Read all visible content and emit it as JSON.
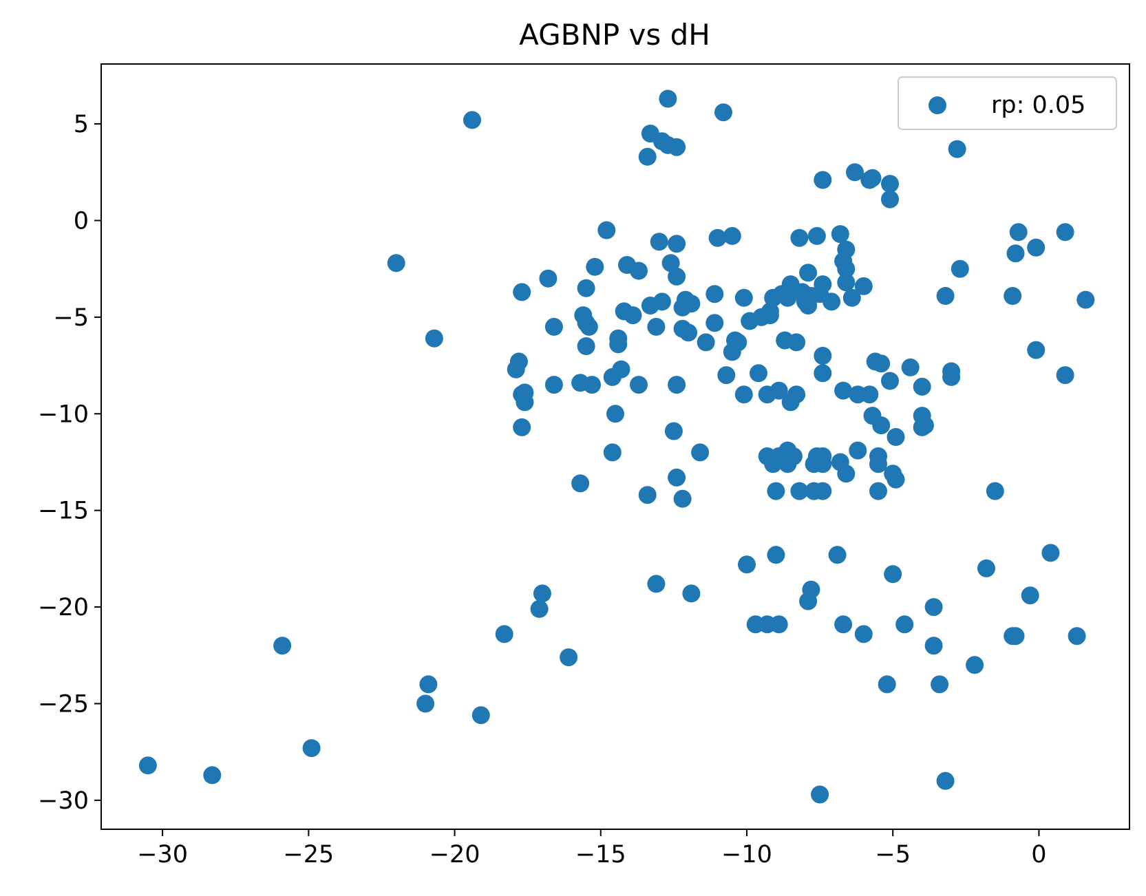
{
  "chart_data": {
    "type": "scatter",
    "title": "AGBNP vs dH",
    "xlabel": "",
    "ylabel": "",
    "xlim": [
      -32.1,
      3.1
    ],
    "ylim": [
      -31.5,
      8.1
    ],
    "xticks": [
      -30,
      -25,
      -20,
      -15,
      -10,
      -5,
      0
    ],
    "xtick_labels": [
      "−30",
      "−25",
      "−20",
      "−15",
      "−10",
      "−5",
      "0"
    ],
    "yticks": [
      -30,
      -25,
      -20,
      -15,
      -10,
      -5,
      0,
      5
    ],
    "ytick_labels": [
      "−30",
      "−25",
      "−20",
      "−15",
      "−10",
      "−5",
      "0",
      "5"
    ],
    "grid": false,
    "legend": {
      "position": "top-right"
    },
    "series": [
      {
        "name": "rp: 0.05",
        "color": "#1f77b4",
        "points": [
          [
            -30.5,
            -28.2
          ],
          [
            -28.3,
            -28.7
          ],
          [
            -25.9,
            -22.0
          ],
          [
            -24.9,
            -27.3
          ],
          [
            -22.0,
            -2.2
          ],
          [
            -21.0,
            -25.0
          ],
          [
            -20.9,
            -24.0
          ],
          [
            -20.7,
            -6.1
          ],
          [
            -19.4,
            5.2
          ],
          [
            -19.1,
            -25.6
          ],
          [
            -18.3,
            -21.4
          ],
          [
            -17.9,
            -7.7
          ],
          [
            -17.8,
            -7.3
          ],
          [
            -17.7,
            -9.0
          ],
          [
            -17.7,
            -3.7
          ],
          [
            -17.6,
            -8.9
          ],
          [
            -17.6,
            -9.4
          ],
          [
            -17.7,
            -10.7
          ],
          [
            -17.0,
            -19.3
          ],
          [
            -17.1,
            -20.1
          ],
          [
            -16.8,
            -3.0
          ],
          [
            -16.6,
            -5.5
          ],
          [
            -16.6,
            -8.5
          ],
          [
            -16.1,
            -22.6
          ],
          [
            -15.7,
            -13.6
          ],
          [
            -15.7,
            -8.4
          ],
          [
            -15.6,
            -4.9
          ],
          [
            -15.5,
            -5.3
          ],
          [
            -15.5,
            -6.5
          ],
          [
            -15.5,
            -3.5
          ],
          [
            -15.4,
            -5.5
          ],
          [
            -15.3,
            -8.5
          ],
          [
            -15.2,
            -2.4
          ],
          [
            -14.8,
            -0.5
          ],
          [
            -14.6,
            -8.1
          ],
          [
            -14.6,
            -12.0
          ],
          [
            -14.5,
            -10.0
          ],
          [
            -14.4,
            -6.1
          ],
          [
            -14.4,
            -6.4
          ],
          [
            -14.3,
            -7.7
          ],
          [
            -14.2,
            -4.7
          ],
          [
            -14.1,
            -2.3
          ],
          [
            -13.9,
            -4.9
          ],
          [
            -13.7,
            -8.5
          ],
          [
            -13.7,
            -2.6
          ],
          [
            -13.4,
            -14.2
          ],
          [
            -13.4,
            3.3
          ],
          [
            -13.3,
            4.5
          ],
          [
            -13.3,
            -4.4
          ],
          [
            -13.1,
            -5.5
          ],
          [
            -13.1,
            -18.8
          ],
          [
            -13.0,
            -1.1
          ],
          [
            -12.9,
            4.1
          ],
          [
            -12.9,
            -4.2
          ],
          [
            -12.7,
            6.3
          ],
          [
            -12.7,
            3.9
          ],
          [
            -12.6,
            -2.2
          ],
          [
            -12.5,
            -10.9
          ],
          [
            -12.4,
            3.8
          ],
          [
            -12.4,
            -1.2
          ],
          [
            -12.4,
            -13.3
          ],
          [
            -12.4,
            -8.5
          ],
          [
            -12.4,
            -2.9
          ],
          [
            -12.2,
            -14.4
          ],
          [
            -12.2,
            -4.5
          ],
          [
            -12.2,
            -5.6
          ],
          [
            -12.1,
            -4.1
          ],
          [
            -12.0,
            -5.8
          ],
          [
            -11.9,
            -19.3
          ],
          [
            -11.9,
            -4.3
          ],
          [
            -11.6,
            -12.0
          ],
          [
            -11.4,
            -6.3
          ],
          [
            -11.1,
            -3.8
          ],
          [
            -11.1,
            -5.3
          ],
          [
            -11.0,
            -0.9
          ],
          [
            -10.8,
            5.6
          ],
          [
            -10.7,
            -8.0
          ],
          [
            -10.5,
            -0.8
          ],
          [
            -10.5,
            -6.8
          ],
          [
            -10.4,
            -6.2
          ],
          [
            -10.3,
            -6.3
          ],
          [
            -10.1,
            -4.0
          ],
          [
            -10.1,
            -9.0
          ],
          [
            -10.0,
            -17.8
          ],
          [
            -9.9,
            -5.2
          ],
          [
            -9.7,
            -20.9
          ],
          [
            -9.6,
            -7.9
          ],
          [
            -9.5,
            -5.0
          ],
          [
            -9.3,
            -20.9
          ],
          [
            -9.3,
            -12.2
          ],
          [
            -9.3,
            -9.0
          ],
          [
            -9.2,
            -4.9
          ],
          [
            -9.2,
            -4.7
          ],
          [
            -9.1,
            -4.0
          ],
          [
            -9.1,
            -12.6
          ],
          [
            -9.0,
            -14.0
          ],
          [
            -9.0,
            -17.3
          ],
          [
            -8.9,
            -12.2
          ],
          [
            -8.9,
            -20.9
          ],
          [
            -8.9,
            -8.8
          ],
          [
            -8.8,
            -3.8
          ],
          [
            -8.7,
            -6.2
          ],
          [
            -8.7,
            -12.3
          ],
          [
            -8.6,
            -12.6
          ],
          [
            -8.6,
            -11.9
          ],
          [
            -8.6,
            -4.0
          ],
          [
            -8.5,
            -9.4
          ],
          [
            -8.5,
            -3.3
          ],
          [
            -8.4,
            -12.2
          ],
          [
            -8.3,
            -9.0
          ],
          [
            -8.3,
            -6.3
          ],
          [
            -8.2,
            -0.9
          ],
          [
            -8.2,
            -14.0
          ],
          [
            -8.1,
            -3.7
          ],
          [
            -8.0,
            -4.2
          ],
          [
            -7.9,
            -2.7
          ],
          [
            -7.9,
            -4.4
          ],
          [
            -7.9,
            -19.7
          ],
          [
            -7.8,
            -19.1
          ],
          [
            -7.8,
            -3.9
          ],
          [
            -7.7,
            -14.0
          ],
          [
            -7.7,
            -12.6
          ],
          [
            -7.6,
            -12.2
          ],
          [
            -7.6,
            -0.8
          ],
          [
            -7.5,
            -29.7
          ],
          [
            -7.5,
            -3.8
          ],
          [
            -7.4,
            -7.0
          ],
          [
            -7.4,
            -7.9
          ],
          [
            -7.4,
            -3.3
          ],
          [
            -7.4,
            2.1
          ],
          [
            -7.4,
            -12.2
          ],
          [
            -7.4,
            -12.6
          ],
          [
            -7.4,
            -14.0
          ],
          [
            -7.1,
            -4.2
          ],
          [
            -6.9,
            -17.3
          ],
          [
            -6.8,
            -12.5
          ],
          [
            -6.8,
            -0.7
          ],
          [
            -6.7,
            -20.9
          ],
          [
            -6.7,
            -2.1
          ],
          [
            -6.7,
            -8.8
          ],
          [
            -6.6,
            -1.5
          ],
          [
            -6.6,
            -2.5
          ],
          [
            -6.6,
            -3.2
          ],
          [
            -6.6,
            -13.1
          ],
          [
            -6.4,
            -4.0
          ],
          [
            -6.3,
            2.5
          ],
          [
            -6.2,
            -9.0
          ],
          [
            -6.2,
            -11.9
          ],
          [
            -6.0,
            -21.4
          ],
          [
            -6.0,
            -3.4
          ],
          [
            -5.8,
            2.1
          ],
          [
            -5.8,
            -9.0
          ],
          [
            -5.7,
            2.2
          ],
          [
            -5.7,
            -10.1
          ],
          [
            -5.6,
            -7.3
          ],
          [
            -5.5,
            -14.0
          ],
          [
            -5.5,
            -12.2
          ],
          [
            -5.5,
            -12.6
          ],
          [
            -5.4,
            -10.6
          ],
          [
            -5.4,
            -7.4
          ],
          [
            -5.2,
            -24.0
          ],
          [
            -5.1,
            -8.3
          ],
          [
            -5.1,
            1.9
          ],
          [
            -5.1,
            1.1
          ],
          [
            -5.0,
            -13.1
          ],
          [
            -5.0,
            -18.3
          ],
          [
            -4.9,
            -13.4
          ],
          [
            -4.9,
            -11.2
          ],
          [
            -4.6,
            -20.9
          ],
          [
            -4.4,
            -7.6
          ],
          [
            -4.0,
            -8.6
          ],
          [
            -4.0,
            -10.1
          ],
          [
            -4.0,
            -10.7
          ],
          [
            -3.9,
            -10.6
          ],
          [
            -3.6,
            -20.0
          ],
          [
            -3.6,
            -22.0
          ],
          [
            -3.4,
            -24.0
          ],
          [
            -3.2,
            -29.0
          ],
          [
            -3.2,
            -3.9
          ],
          [
            -3.0,
            -7.8
          ],
          [
            -3.0,
            -8.1
          ],
          [
            -2.8,
            3.7
          ],
          [
            -2.7,
            -2.5
          ],
          [
            -2.2,
            -23.0
          ],
          [
            -1.8,
            -18.0
          ],
          [
            -1.5,
            -14.0
          ],
          [
            -0.9,
            -3.9
          ],
          [
            -0.9,
            -21.5
          ],
          [
            -0.8,
            -21.5
          ],
          [
            -0.8,
            -1.7
          ],
          [
            -0.7,
            -0.6
          ],
          [
            -0.3,
            -19.4
          ],
          [
            -0.1,
            -1.4
          ],
          [
            -0.1,
            -6.7
          ],
          [
            0.4,
            -17.2
          ],
          [
            0.9,
            -0.6
          ],
          [
            0.9,
            -8.0
          ],
          [
            1.3,
            -21.5
          ],
          [
            1.6,
            -4.1
          ]
        ]
      }
    ]
  }
}
